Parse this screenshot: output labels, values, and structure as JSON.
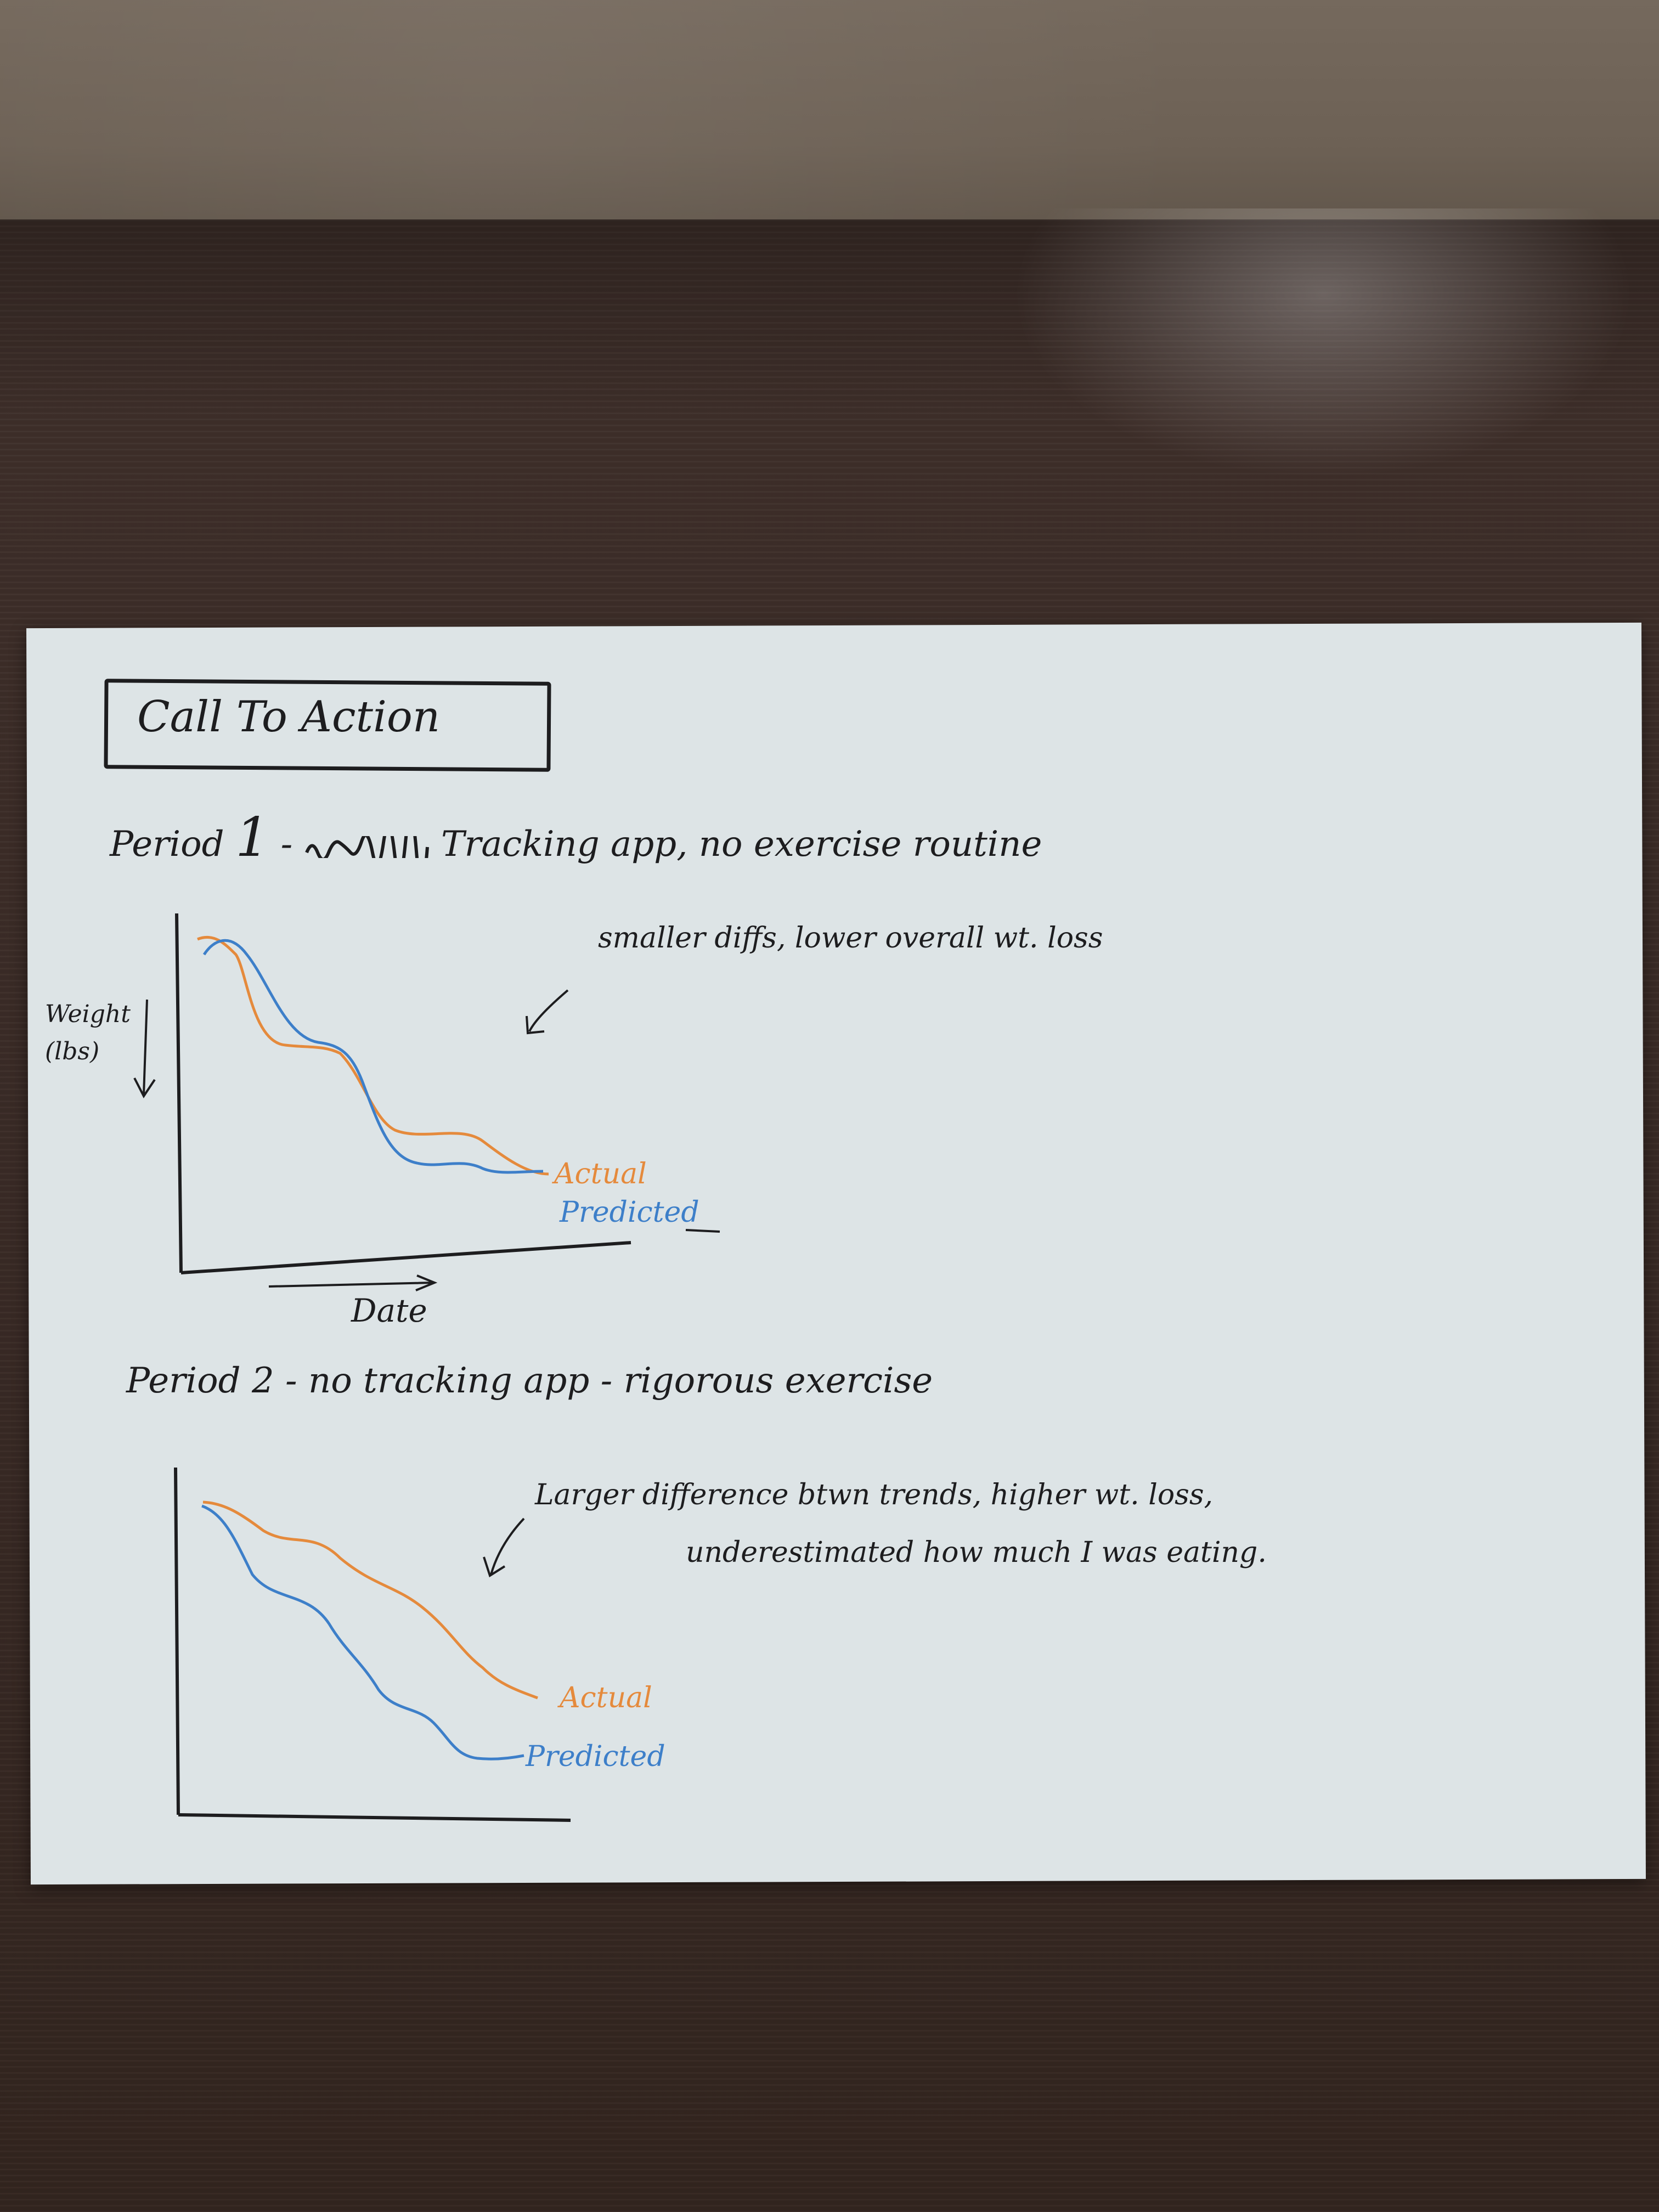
{
  "title": "Call To Action",
  "period1": {
    "label": "Period",
    "number": "1",
    "dash": "-",
    "description": "Tracking app, no exercise routine",
    "note": "smaller diffs, lower overall wt. loss",
    "ylabel_line1": "Weight",
    "ylabel_line2": "(lbs)",
    "xlabel": "Date",
    "legend_actual": "Actual",
    "legend_predicted": "Predicted"
  },
  "period2": {
    "label": "Period",
    "number": "2",
    "dash": "-",
    "description": "no tracking app - rigorous exercise",
    "note_line1": "Larger difference btwn trends, higher wt. loss,",
    "note_line2": "underestimated how much I was eating.",
    "legend_actual": "Actual",
    "legend_predicted": "Predicted"
  },
  "colors": {
    "actual": "#e58a3c",
    "predicted": "#3d7fc9",
    "ink": "#1d1d1f",
    "paper": "#dde4e6"
  }
}
